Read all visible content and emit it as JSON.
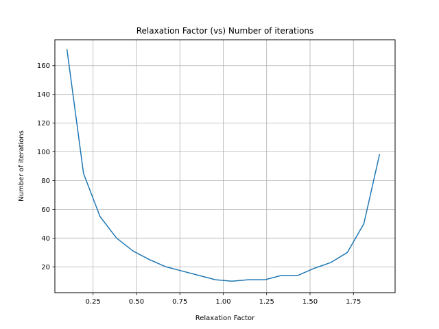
{
  "chart_data": {
    "type": "line",
    "title": "Relaxation Factor (vs) Number of iterations",
    "xlabel": "Relaxation Factor",
    "ylabel": "Number of iterations",
    "xlim": [
      0.03,
      1.99
    ],
    "ylim": [
      2,
      178
    ],
    "xticks": [
      0.25,
      0.5,
      0.75,
      1.0,
      1.25,
      1.5,
      1.75
    ],
    "xtick_labels": [
      "0.25",
      "0.50",
      "0.75",
      "1.00",
      "1.25",
      "1.50",
      "1.75"
    ],
    "yticks": [
      20,
      40,
      60,
      80,
      100,
      120,
      140,
      160
    ],
    "ytick_labels": [
      "20",
      "40",
      "60",
      "80",
      "100",
      "120",
      "140",
      "160"
    ],
    "grid": true,
    "line_color": "#1f77b4",
    "series": [
      {
        "x": [
          0.1,
          0.195,
          0.29,
          0.385,
          0.48,
          0.575,
          0.67,
          0.765,
          0.86,
          0.955,
          1.05,
          1.145,
          1.24,
          1.335,
          1.43,
          1.525,
          1.62,
          1.715,
          1.81,
          1.9
        ],
        "y": [
          171,
          85,
          55,
          40,
          31,
          25,
          20,
          17,
          14,
          11,
          10,
          11,
          11,
          14,
          14,
          19,
          23,
          30,
          50,
          98
        ]
      }
    ]
  }
}
